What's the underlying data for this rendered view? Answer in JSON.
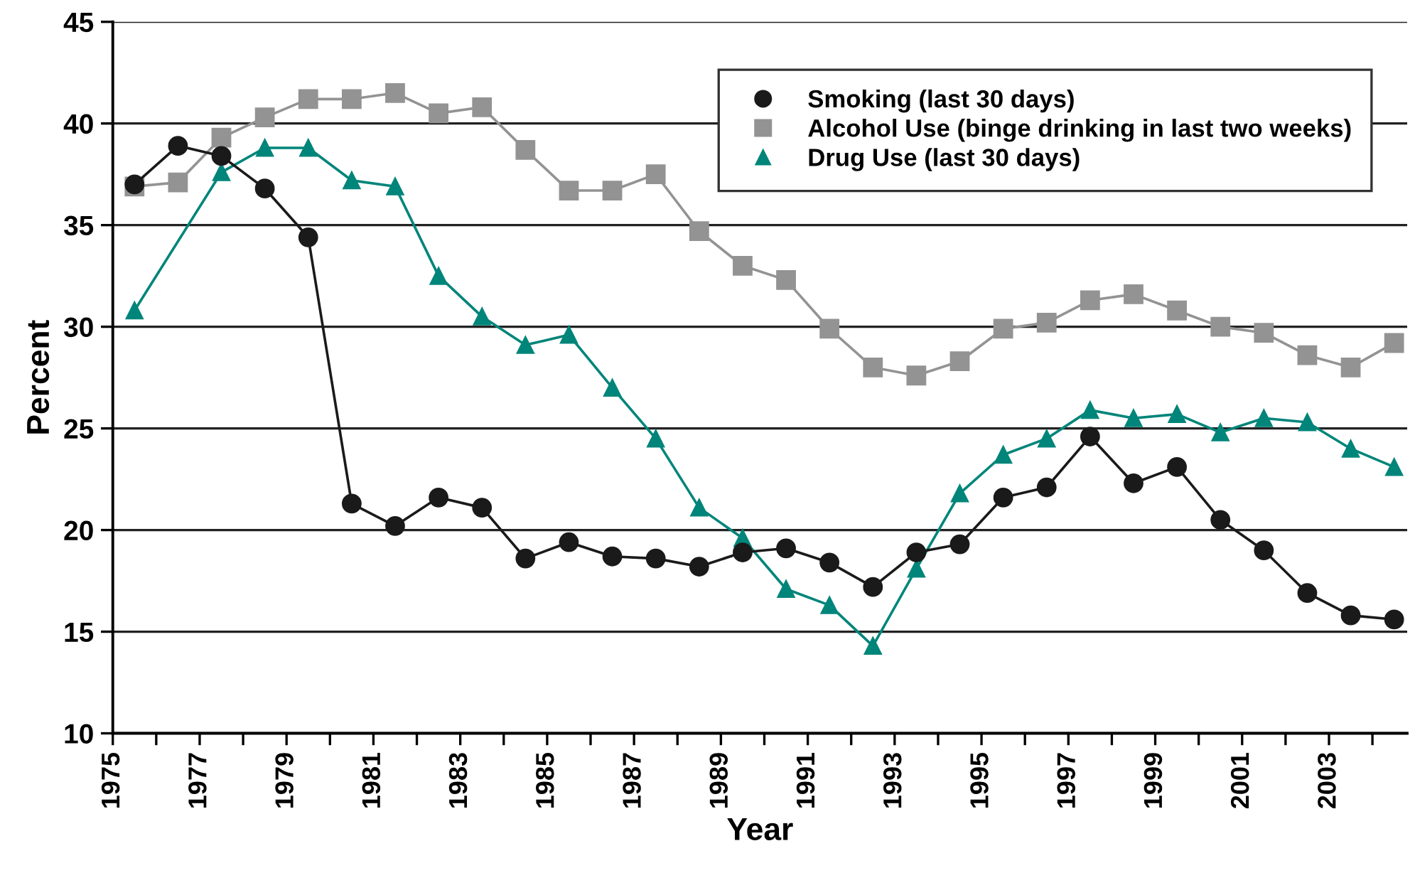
{
  "chart_data": {
    "type": "line",
    "xlabel": "Year",
    "ylabel": "Percent",
    "x": [
      1975.5,
      1976.5,
      1977.5,
      1978.5,
      1979.5,
      1980.5,
      1981.5,
      1982.5,
      1983.5,
      1984.5,
      1985.5,
      1986.5,
      1987.5,
      1988.5,
      1989.5,
      1990.5,
      1991.5,
      1992.5,
      1993.5,
      1994.5,
      1995.5,
      1996.5,
      1997.5,
      1998.5,
      1999.5,
      2000.5,
      2001.5,
      2002.5,
      2003.5,
      2004.5
    ],
    "series": [
      {
        "name": "Smoking (last 30 days)",
        "color": "#1a1a1a",
        "marker": "circle",
        "values": [
          37.0,
          38.9,
          38.4,
          36.8,
          34.4,
          21.3,
          20.2,
          21.6,
          21.1,
          18.6,
          19.4,
          18.7,
          18.6,
          18.2,
          18.9,
          19.1,
          18.4,
          17.2,
          18.9,
          19.3,
          21.6,
          22.1,
          24.6,
          22.3,
          23.1,
          20.5,
          19.0,
          16.9,
          15.8,
          15.6
        ]
      },
      {
        "name": "Alcohol Use (binge drinking in last two weeks)",
        "color": "#939393",
        "marker": "square",
        "values": [
          36.9,
          37.1,
          39.3,
          40.3,
          41.2,
          41.2,
          41.5,
          40.5,
          40.8,
          38.7,
          36.7,
          36.7,
          37.5,
          34.7,
          33.0,
          32.3,
          29.9,
          28.0,
          27.6,
          28.3,
          29.9,
          30.2,
          31.3,
          31.6,
          30.8,
          30.0,
          29.7,
          28.6,
          28.0,
          29.2
        ]
      },
      {
        "name": "Drug Use (last 30 days)",
        "color": "#00857a",
        "marker": "triangle",
        "x": [
          1975.5,
          1977.5,
          1978.5,
          1979.5,
          1980.5,
          1981.5,
          1982.5,
          1983.5,
          1984.5,
          1985.5,
          1986.5,
          1987.5,
          1988.5,
          1989.5,
          1990.5,
          1991.5,
          1992.5,
          1993.5,
          1994.5,
          1995.5,
          1996.5,
          1997.5,
          1998.5,
          1999.5,
          2000.5,
          2001.5,
          2002.5,
          2003.5,
          2004.5
        ],
        "values": [
          30.8,
          37.6,
          38.8,
          38.8,
          37.2,
          36.9,
          32.5,
          30.5,
          29.1,
          29.6,
          27.0,
          24.5,
          21.1,
          19.6,
          17.1,
          16.3,
          14.3,
          18.1,
          21.8,
          23.7,
          24.5,
          25.9,
          25.5,
          25.7,
          24.8,
          25.5,
          25.3,
          24.0,
          23.1
        ]
      }
    ],
    "xlim": [
      1975,
      2004.8
    ],
    "xticks": [
      1975,
      {
        "value": 1976,
        "label": null
      },
      1977,
      {
        "value": 1978,
        "label": null
      },
      1979,
      {
        "value": 1980,
        "label": null
      },
      1981,
      {
        "value": 1982,
        "label": null
      },
      1983,
      {
        "value": 1984,
        "label": null
      },
      1985,
      {
        "value": 1986,
        "label": null
      },
      1987,
      {
        "value": 1988,
        "label": null
      },
      1989,
      {
        "value": 1990,
        "label": null
      },
      1991,
      {
        "value": 1992,
        "label": null
      },
      1993,
      {
        "value": 1994,
        "label": null
      },
      1995,
      {
        "value": 1996,
        "label": null
      },
      1997,
      {
        "value": 1998,
        "label": null
      },
      1999,
      {
        "value": 2000,
        "label": null
      },
      2001,
      {
        "value": 2002,
        "label": null
      },
      2003,
      {
        "value": 2004,
        "label": null
      }
    ],
    "ylim": [
      10,
      45
    ],
    "yticks": [
      10,
      15,
      20,
      25,
      30,
      35,
      40,
      45
    ],
    "grid": "y",
    "legend": "top right",
    "line_style": "solid"
  }
}
